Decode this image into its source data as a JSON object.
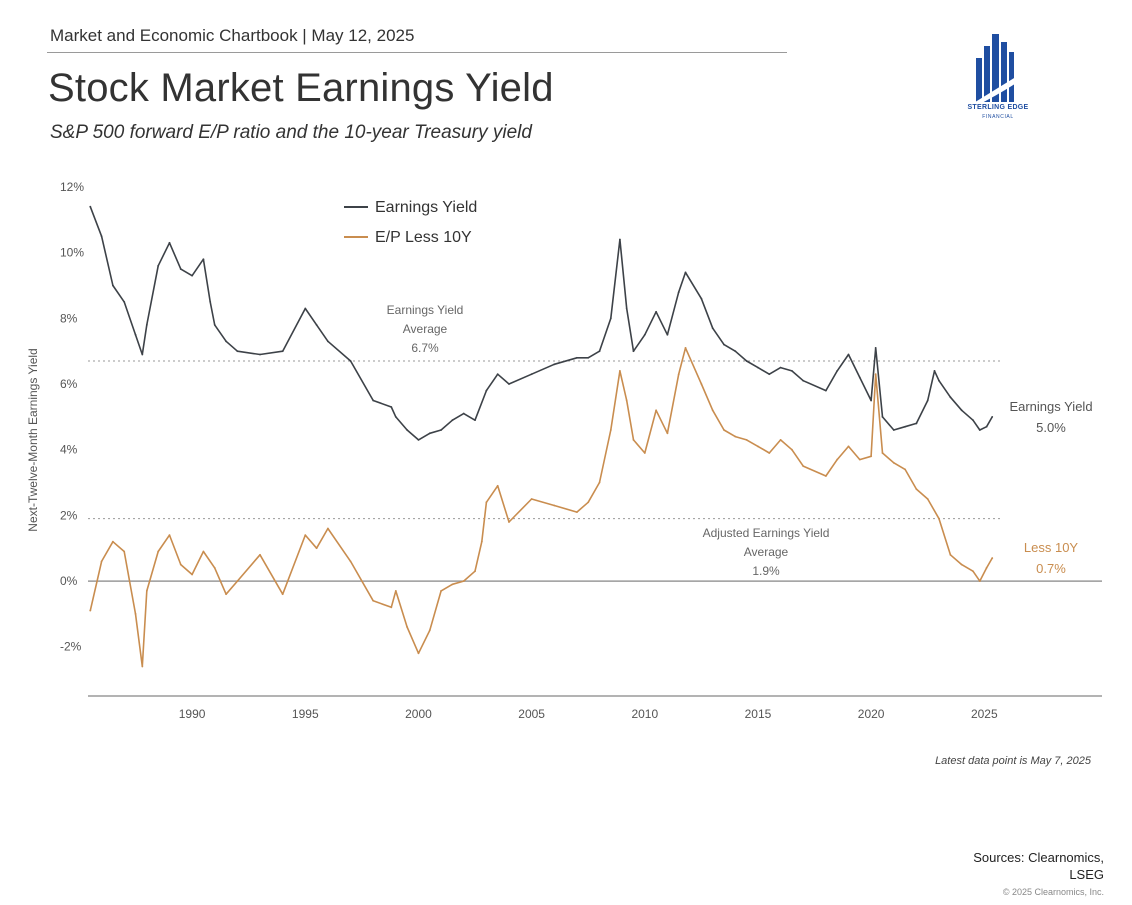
{
  "header": {
    "kicker": "Market and Economic Chartbook | May 12, 2025",
    "title": "Stock Market Earnings Yield",
    "subtitle": "S&P 500 forward E/P ratio and the 10-year Treasury yield"
  },
  "logo": {
    "name": "STERLING EDGE",
    "sub": "FINANCIAL",
    "color": "#1f4ea1"
  },
  "footer": {
    "latest_note": "Latest data point is May 7, 2025",
    "sources_line1": "Sources: Clearnomics,",
    "sources_line2": "LSEG",
    "copyright": "© 2025 Clearnomics, Inc."
  },
  "chart_data": {
    "type": "line",
    "title": "Stock Market Earnings Yield",
    "ylabel": "Next-Twelve-Month Earnings Yield",
    "xlim": [
      1985.4,
      2030.2
    ],
    "ylim": [
      -3.5,
      12
    ],
    "x_ticks": [
      1990,
      1995,
      2000,
      2005,
      2010,
      2015,
      2020,
      2025
    ],
    "x_tick_labels": [
      "1990",
      "1995",
      "2000",
      "2005",
      "2010",
      "2015",
      "2020",
      "2025"
    ],
    "y_ticks": [
      -2,
      0,
      2,
      4,
      6,
      8,
      10,
      12
    ],
    "y_tick_labels": [
      "-2%",
      "0%",
      "2%",
      "4%",
      "6%",
      "8%",
      "10%",
      "12%"
    ],
    "legend_position": "top-center",
    "reference_lines": [
      {
        "value": 6.7,
        "style": "dotted"
      },
      {
        "value": 1.9,
        "style": "dotted"
      },
      {
        "value": 0,
        "style": "solid"
      }
    ],
    "series": [
      {
        "name": "Earnings Yield",
        "color": "#3d4248",
        "x": [
          1985.5,
          1986.0,
          1986.5,
          1987.0,
          1987.5,
          1987.8,
          1988.0,
          1988.5,
          1989.0,
          1989.5,
          1990.0,
          1990.5,
          1990.8,
          1991.0,
          1991.5,
          1992.0,
          1993.0,
          1994.0,
          1995.0,
          1995.5,
          1996.0,
          1997.0,
          1998.0,
          1998.8,
          1999.0,
          1999.5,
          2000.0,
          2000.5,
          2001.0,
          2001.5,
          2002.0,
          2002.5,
          2003.0,
          2003.5,
          2004.0,
          2005.0,
          2006.0,
          2007.0,
          2007.5,
          2008.0,
          2008.5,
          2008.9,
          2009.2,
          2009.5,
          2010.0,
          2010.5,
          2011.0,
          2011.5,
          2011.8,
          2012.5,
          2013.0,
          2013.5,
          2014.0,
          2014.5,
          2015.0,
          2015.5,
          2016.0,
          2016.5,
          2017.0,
          2018.0,
          2018.5,
          2019.0,
          2019.5,
          2020.0,
          2020.2,
          2020.5,
          2021.0,
          2021.5,
          2022.0,
          2022.5,
          2022.8,
          2023.0,
          2023.5,
          2024.0,
          2024.5,
          2024.8,
          2025.1,
          2025.35
        ],
        "values": [
          11.4,
          10.5,
          9.0,
          8.5,
          7.5,
          6.9,
          7.8,
          9.6,
          10.3,
          9.5,
          9.3,
          9.8,
          8.5,
          7.8,
          7.3,
          7.0,
          6.9,
          7.0,
          8.3,
          7.8,
          7.3,
          6.7,
          5.5,
          5.3,
          5.0,
          4.6,
          4.3,
          4.5,
          4.6,
          4.9,
          5.1,
          4.9,
          5.8,
          6.3,
          6.0,
          6.3,
          6.6,
          6.8,
          6.8,
          7.0,
          8.0,
          10.4,
          8.3,
          7.0,
          7.5,
          8.2,
          7.5,
          8.8,
          9.4,
          8.6,
          7.7,
          7.2,
          7.0,
          6.7,
          6.5,
          6.3,
          6.5,
          6.4,
          6.1,
          5.8,
          6.4,
          6.9,
          6.2,
          5.5,
          7.1,
          5.0,
          4.6,
          4.7,
          4.8,
          5.5,
          6.4,
          6.1,
          5.6,
          5.2,
          4.9,
          4.6,
          4.7,
          5.0
        ]
      },
      {
        "name": "E/P Less 10Y",
        "color": "#c98d4f",
        "x": [
          1985.5,
          1986.0,
          1986.5,
          1987.0,
          1987.5,
          1987.8,
          1988.0,
          1988.5,
          1989.0,
          1989.5,
          1990.0,
          1990.5,
          1991.0,
          1991.5,
          1992.0,
          1993.0,
          1994.0,
          1995.0,
          1995.5,
          1996.0,
          1997.0,
          1998.0,
          1998.8,
          1999.0,
          1999.5,
          2000.0,
          2000.5,
          2001.0,
          2001.5,
          2002.0,
          2002.5,
          2002.8,
          2003.0,
          2003.5,
          2004.0,
          2005.0,
          2006.0,
          2007.0,
          2007.5,
          2008.0,
          2008.5,
          2008.9,
          2009.2,
          2009.5,
          2010.0,
          2010.5,
          2011.0,
          2011.5,
          2011.8,
          2012.5,
          2013.0,
          2013.5,
          2014.0,
          2014.5,
          2015.0,
          2015.5,
          2016.0,
          2016.5,
          2017.0,
          2018.0,
          2018.5,
          2019.0,
          2019.5,
          2020.0,
          2020.2,
          2020.5,
          2021.0,
          2021.5,
          2022.0,
          2022.5,
          2023.0,
          2023.5,
          2024.0,
          2024.5,
          2024.8,
          2025.1,
          2025.35
        ],
        "values": [
          -0.9,
          0.6,
          1.2,
          0.9,
          -1.0,
          -2.6,
          -0.3,
          0.9,
          1.4,
          0.5,
          0.2,
          0.9,
          0.4,
          -0.4,
          0.0,
          0.8,
          -0.4,
          1.4,
          1.0,
          1.6,
          0.6,
          -0.6,
          -0.8,
          -0.3,
          -1.4,
          -2.2,
          -1.5,
          -0.3,
          -0.1,
          0.0,
          0.3,
          1.2,
          2.4,
          2.9,
          1.8,
          2.5,
          2.3,
          2.1,
          2.4,
          3.0,
          4.6,
          6.4,
          5.5,
          4.3,
          3.9,
          5.2,
          4.5,
          6.3,
          7.1,
          6.0,
          5.2,
          4.6,
          4.4,
          4.3,
          4.1,
          3.9,
          4.3,
          4.0,
          3.5,
          3.2,
          3.7,
          4.1,
          3.7,
          3.8,
          6.3,
          3.9,
          3.6,
          3.4,
          2.8,
          2.5,
          1.9,
          0.8,
          0.5,
          0.3,
          0.0,
          0.4,
          0.7
        ]
      }
    ],
    "annotations": {
      "ey_avg": [
        "Earnings Yield",
        "Average",
        "6.7%"
      ],
      "adj_avg": [
        "Adjusted Earnings Yield",
        "Average",
        "1.9%"
      ],
      "ey_end": [
        "Earnings Yield",
        "5.0%"
      ],
      "less_end": [
        "Less 10Y",
        "0.7%"
      ]
    }
  }
}
